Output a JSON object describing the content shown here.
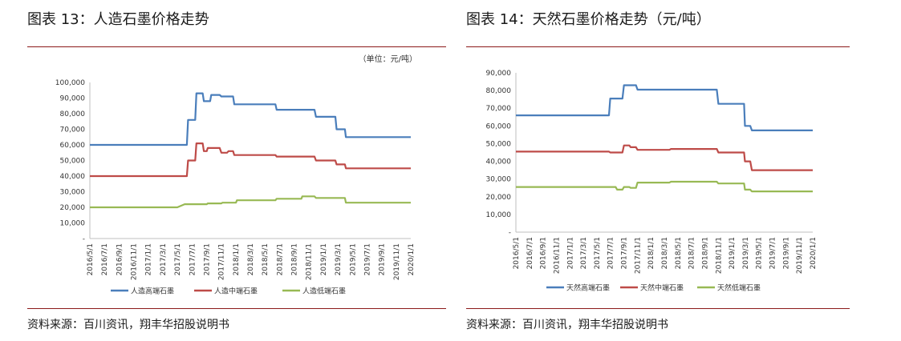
{
  "left": {
    "title": "图表 13：人造石墨价格走势",
    "unit": "（单位：元/吨）",
    "source": "资料来源：百川资讯，翔丰华招股说明书"
  },
  "right": {
    "title": "图表 14：天然石墨价格走势（元/吨）",
    "source": "资料来源：百川资讯，翔丰华招股说明书"
  },
  "chart_data": [
    {
      "type": "line",
      "title": "图表 13：人造石墨价格走势",
      "unit_note": "（单位：元/吨）",
      "ylim": [
        0,
        100000
      ],
      "yticks": [
        "-",
        "10,000",
        "20,000",
        "30,000",
        "40,000",
        "50,000",
        "60,000",
        "70,000",
        "80,000",
        "90,000",
        "100,000"
      ],
      "xlim": [
        "2016-05-01",
        "2020-01-01"
      ],
      "x_tick_labels": [
        "2016/5/1",
        "2016/7/1",
        "2016/9/1",
        "2016/11/1",
        "2017/1/1",
        "2017/3/1",
        "2017/5/1",
        "2017/7/1",
        "2017/9/1",
        "2017/11/1",
        "2018/1/1",
        "2018/3/1",
        "2018/5/1",
        "2018/7/1",
        "2018/9/1",
        "2018/11/1",
        "2019/1/1",
        "2019/3/1",
        "2019/5/1",
        "2019/7/1",
        "2019/9/1",
        "2019/11/1",
        "2020/1/1"
      ],
      "legend_position": "bottom",
      "grid": false,
      "series": [
        {
          "name": "人造高端石墨",
          "color": "#4a7ebb",
          "x": [
            "2016-05-01",
            "2017-06-10",
            "2017-06-15",
            "2017-07-15",
            "2017-07-20",
            "2017-08-15",
            "2017-08-20",
            "2017-09-15",
            "2017-09-20",
            "2017-10-25",
            "2017-11-01",
            "2017-12-20",
            "2017-12-25",
            "2018-06-15",
            "2018-06-20",
            "2018-11-25",
            "2018-12-01",
            "2019-02-20",
            "2019-02-25",
            "2019-04-01",
            "2019-04-05",
            "2020-01-01"
          ],
          "y": [
            60000,
            60000,
            76000,
            76000,
            93000,
            93000,
            88000,
            88000,
            92000,
            92000,
            91000,
            91000,
            86000,
            86000,
            82500,
            82500,
            78000,
            78000,
            70000,
            70000,
            65000,
            65000
          ]
        },
        {
          "name": "人造中端石墨",
          "color": "#be4b48",
          "x": [
            "2016-05-01",
            "2017-06-10",
            "2017-06-15",
            "2017-07-15",
            "2017-07-20",
            "2017-08-15",
            "2017-08-20",
            "2017-09-01",
            "2017-09-05",
            "2017-10-25",
            "2017-11-01",
            "2017-11-25",
            "2017-12-01",
            "2017-12-20",
            "2017-12-25",
            "2018-06-15",
            "2018-06-20",
            "2018-11-25",
            "2018-12-01",
            "2019-02-20",
            "2019-02-25",
            "2019-04-01",
            "2019-04-05",
            "2020-01-01"
          ],
          "y": [
            40000,
            40000,
            50000,
            50000,
            61000,
            61000,
            56000,
            56000,
            58000,
            58000,
            55000,
            55000,
            56000,
            56000,
            53500,
            53500,
            52500,
            52500,
            50000,
            50000,
            47500,
            47500,
            45000,
            45000
          ]
        },
        {
          "name": "人造低端石墨",
          "color": "#98b954",
          "x": [
            "2016-05-01",
            "2017-05-01",
            "2017-06-01",
            "2017-09-01",
            "2017-09-05",
            "2017-11-01",
            "2017-11-05",
            "2018-01-01",
            "2018-01-05",
            "2018-06-15",
            "2018-06-20",
            "2018-10-01",
            "2018-10-05",
            "2018-11-25",
            "2018-12-01",
            "2019-04-01",
            "2019-04-05",
            "2020-01-01"
          ],
          "y": [
            20000,
            20000,
            22000,
            22000,
            22500,
            22500,
            23000,
            23000,
            24500,
            24500,
            25500,
            25500,
            27000,
            27000,
            26000,
            26000,
            23000,
            23000
          ]
        }
      ]
    },
    {
      "type": "line",
      "title": "图表 14：天然石墨价格走势（元/吨）",
      "ylim": [
        0,
        90000
      ],
      "yticks": [
        "-",
        "10,000",
        "20,000",
        "30,000",
        "40,000",
        "50,000",
        "60,000",
        "70,000",
        "80,000",
        "90,000"
      ],
      "xlim": [
        "2016-05-01",
        "2020-01-01"
      ],
      "x_tick_labels": [
        "2016/5/1",
        "2016/7/1",
        "2016/9/1",
        "2016/11/1",
        "2017/1/1",
        "2017/3/1",
        "2017/5/1",
        "2017/7/1",
        "2017/9/1",
        "2017/11/1",
        "2018/1/1",
        "2018/3/1",
        "2018/5/1",
        "2018/7/1",
        "2018/9/1",
        "2018/11/1",
        "2019/1/1",
        "2019/3/1",
        "2019/5/1",
        "2019/7/1",
        "2019/9/1",
        "2019/11/1",
        "2020/1/1"
      ],
      "legend_position": "bottom",
      "grid": false,
      "series": [
        {
          "name": "天然高端石墨",
          "color": "#4a7ebb",
          "x": [
            "2016-05-01",
            "2017-06-25",
            "2017-07-01",
            "2017-08-25",
            "2017-09-01",
            "2017-10-25",
            "2017-11-01",
            "2018-10-25",
            "2018-11-01",
            "2019-02-25",
            "2019-03-01",
            "2019-03-25",
            "2019-04-01",
            "2020-01-01"
          ],
          "y": [
            66000,
            66000,
            75500,
            75500,
            83000,
            83000,
            80500,
            80500,
            72500,
            72500,
            60000,
            60000,
            57500,
            57500
          ]
        },
        {
          "name": "天然中端石墨",
          "color": "#be4b48",
          "x": [
            "2016-05-01",
            "2017-06-25",
            "2017-07-01",
            "2017-08-25",
            "2017-09-01",
            "2017-09-25",
            "2017-10-01",
            "2017-10-25",
            "2017-11-01",
            "2018-03-25",
            "2018-04-01",
            "2018-10-25",
            "2018-11-01",
            "2019-02-25",
            "2019-03-01",
            "2019-03-25",
            "2019-04-01",
            "2020-01-01"
          ],
          "y": [
            45500,
            45500,
            45000,
            45000,
            49000,
            49000,
            48000,
            48000,
            46500,
            46500,
            47000,
            47000,
            45000,
            45000,
            40000,
            40000,
            35000,
            35000
          ]
        },
        {
          "name": "天然低端石墨",
          "color": "#98b954",
          "x": [
            "2016-05-01",
            "2017-07-25",
            "2017-08-01",
            "2017-08-25",
            "2017-09-01",
            "2017-09-25",
            "2017-10-01",
            "2017-10-25",
            "2017-11-01",
            "2018-03-25",
            "2018-04-01",
            "2018-10-25",
            "2018-11-01",
            "2019-02-25",
            "2019-03-01",
            "2019-03-25",
            "2019-04-01",
            "2020-01-01"
          ],
          "y": [
            25500,
            25500,
            24000,
            24000,
            25500,
            25500,
            25000,
            25000,
            28000,
            28000,
            28500,
            28500,
            27500,
            27500,
            24000,
            24000,
            23000,
            23000
          ]
        }
      ]
    }
  ]
}
